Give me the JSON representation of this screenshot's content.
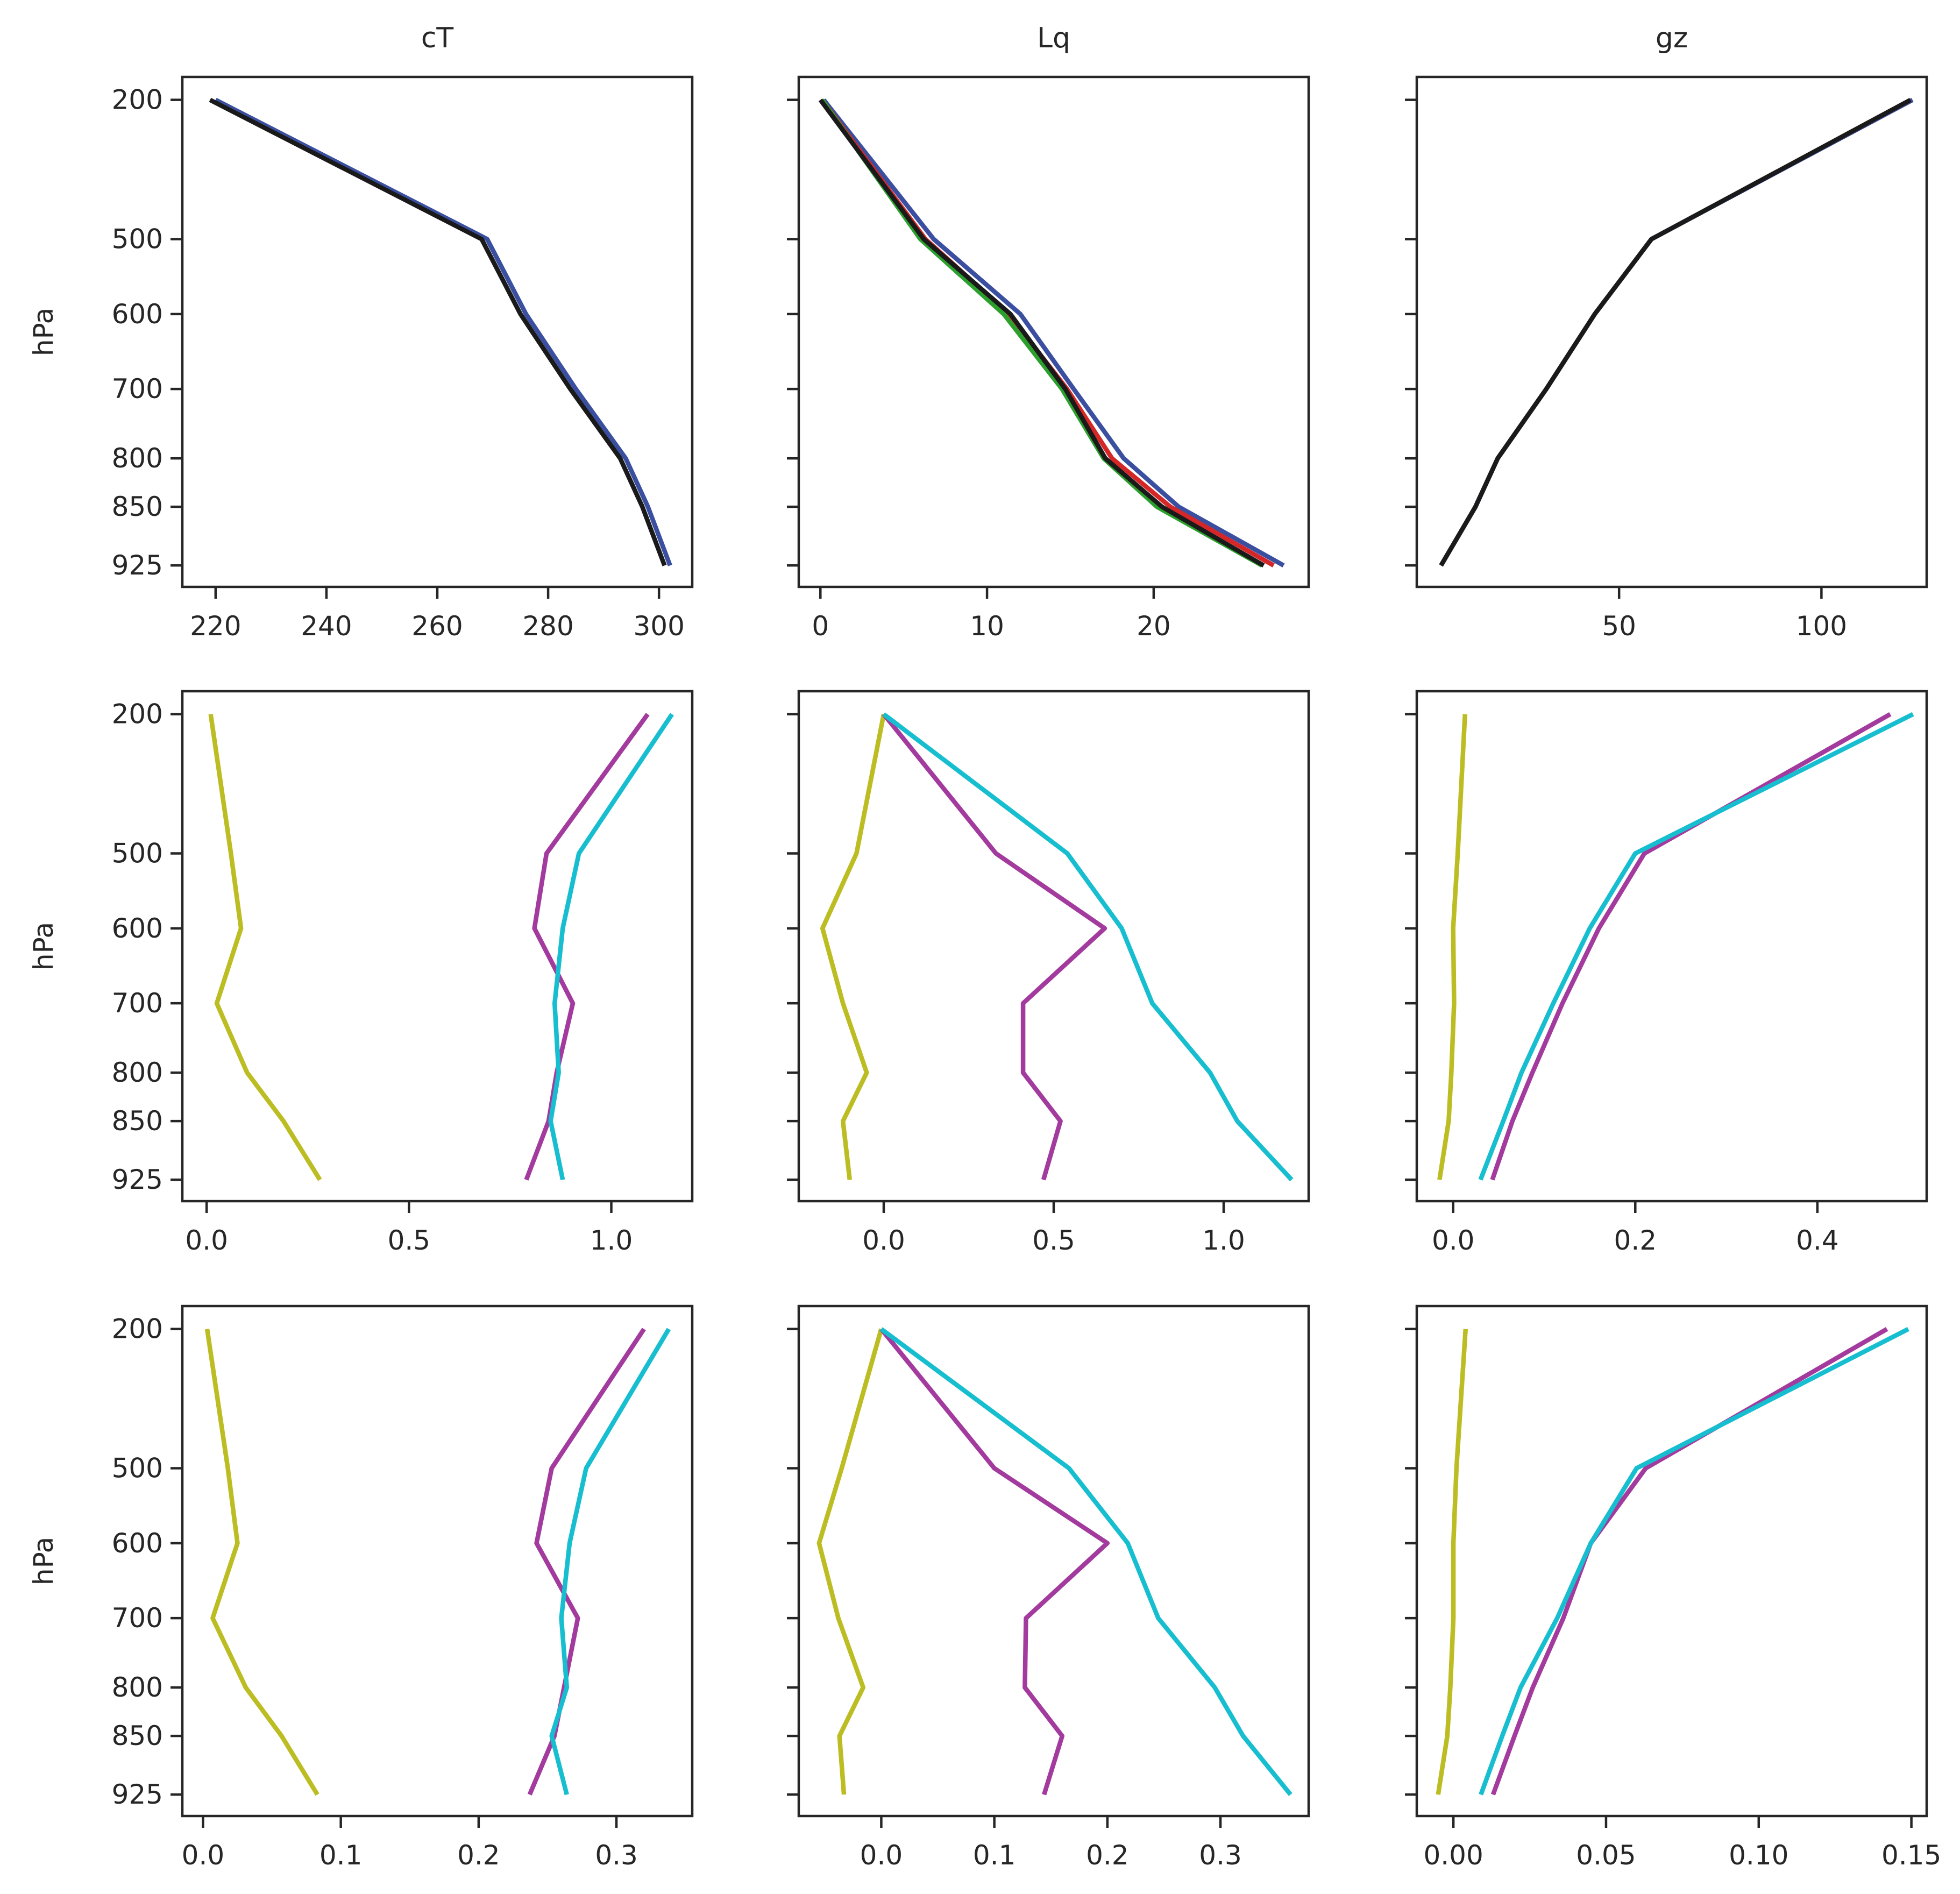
{
  "chart_data": {
    "type": "line",
    "layout": "3x3 grid of vertical profile plots (shared y axis per row)",
    "columns": [
      "cT",
      "Lq",
      "gz"
    ],
    "ylabel": "hPa",
    "pressure_levels": [
      200,
      500,
      600,
      700,
      800,
      850,
      925
    ],
    "panels": [
      {
        "row": 0,
        "col": 0,
        "title": "cT",
        "xlim": [
          214,
          306
        ],
        "xticks": [
          220,
          240,
          260,
          280,
          300
        ],
        "xtick_labels": [
          "220",
          "240",
          "260",
          "280",
          "300"
        ],
        "series": [
          {
            "name": "blue",
            "color": "#3b4fa0",
            "x": [
              220,
              269,
              276,
              285,
              294,
              298,
              302
            ]
          },
          {
            "name": "black",
            "color": "#1a1a1a",
            "x": [
              219,
              268,
              275,
              284,
              293,
              297,
              301
            ]
          }
        ]
      },
      {
        "row": 0,
        "col": 1,
        "title": "Lq",
        "xlim": [
          -1.3,
          29.3
        ],
        "xticks": [
          0,
          10,
          20
        ],
        "xtick_labels": [
          "0",
          "10",
          "20"
        ],
        "series": [
          {
            "name": "blue",
            "color": "#3b4fa0",
            "x": [
              0.2,
              6.8,
              12.0,
              15.2,
              18.2,
              21.5,
              27.8
            ]
          },
          {
            "name": "red",
            "color": "#d62728",
            "x": [
              0.1,
              6.3,
              11.3,
              14.8,
              17.5,
              21.0,
              27.2
            ]
          },
          {
            "name": "green",
            "color": "#2ca02c",
            "x": [
              0.1,
              6.0,
              11.0,
              14.5,
              17.0,
              20.2,
              26.5
            ]
          },
          {
            "name": "black",
            "color": "#1a1a1a",
            "x": [
              0.0,
              6.2,
              11.4,
              14.7,
              17.1,
              20.5,
              26.6
            ]
          }
        ]
      },
      {
        "row": 0,
        "col": 2,
        "title": "gz",
        "xlim": [
          0,
          126
        ],
        "xticks": [
          50,
          100
        ],
        "xtick_labels": [
          "50",
          "100"
        ],
        "series": [
          {
            "name": "blue",
            "color": "#3b4fa0",
            "x": [
              122.5,
              58.0,
              44.0,
              32.0,
              20.0,
              14.5,
              6.0
            ]
          },
          {
            "name": "black",
            "color": "#1a1a1a",
            "x": [
              122.0,
              58.0,
              44.0,
              32.0,
              20.0,
              14.5,
              6.0
            ]
          }
        ]
      },
      {
        "row": 1,
        "col": 0,
        "title": "",
        "xlim": [
          -0.06,
          1.2
        ],
        "xticks": [
          0,
          0.5,
          1.0
        ],
        "xtick_labels": [
          "0.0",
          "0.5",
          "1.0"
        ],
        "series": [
          {
            "name": "olive",
            "color": "#bcbd22",
            "x": [
              0.01,
              0.06,
              0.085,
              0.025,
              0.1,
              0.19,
              0.28
            ]
          },
          {
            "name": "magenta",
            "color": "#a33a9e",
            "x": [
              1.09,
              0.84,
              0.81,
              0.905,
              0.865,
              0.845,
              0.79
            ]
          },
          {
            "name": "cyan",
            "color": "#17becf",
            "x": [
              1.15,
              0.92,
              0.88,
              0.86,
              0.87,
              0.85,
              0.88
            ]
          }
        ]
      },
      {
        "row": 1,
        "col": 1,
        "title": "",
        "xlim": [
          -0.25,
          1.25
        ],
        "xticks": [
          0,
          0.5,
          1.0
        ],
        "xtick_labels": [
          "0.0",
          "0.5",
          "1.0"
        ],
        "series": [
          {
            "name": "olive",
            "color": "#bcbd22",
            "x": [
              0.0,
              -0.08,
              -0.18,
              -0.12,
              -0.05,
              -0.12,
              -0.1
            ]
          },
          {
            "name": "magenta",
            "color": "#a33a9e",
            "x": [
              0.0,
              0.33,
              0.65,
              0.41,
              0.41,
              0.52,
              0.47
            ]
          },
          {
            "name": "cyan",
            "color": "#17becf",
            "x": [
              0.0,
              0.54,
              0.7,
              0.79,
              0.96,
              1.04,
              1.2
            ]
          }
        ]
      },
      {
        "row": 1,
        "col": 2,
        "title": "",
        "xlim": [
          -0.04,
          0.52
        ],
        "xticks": [
          0,
          0.2,
          0.4
        ],
        "xtick_labels": [
          "0.0",
          "0.2",
          "0.4"
        ],
        "series": [
          {
            "name": "olive",
            "color": "#bcbd22",
            "x": [
              0.013,
              0.005,
              0.0,
              0.001,
              -0.002,
              -0.005,
              -0.015
            ]
          },
          {
            "name": "magenta",
            "color": "#a33a9e",
            "x": [
              0.48,
              0.21,
              0.16,
              0.12,
              0.087,
              0.065,
              0.043
            ]
          },
          {
            "name": "cyan",
            "color": "#17becf",
            "x": [
              0.505,
              0.2,
              0.15,
              0.11,
              0.075,
              0.055,
              0.03
            ]
          }
        ]
      },
      {
        "row": 2,
        "col": 0,
        "title": "",
        "xlim": [
          -0.015,
          0.355
        ],
        "xticks": [
          0,
          0.1,
          0.2,
          0.3
        ],
        "xtick_labels": [
          "0.0",
          "0.1",
          "0.2",
          "0.3"
        ],
        "series": [
          {
            "name": "olive",
            "color": "#bcbd22",
            "x": [
              0.003,
              0.018,
              0.025,
              0.007,
              0.031,
              0.057,
              0.083
            ]
          },
          {
            "name": "magenta",
            "color": "#a33a9e",
            "x": [
              0.32,
              0.253,
              0.242,
              0.272,
              0.262,
              0.255,
              0.237
            ]
          },
          {
            "name": "cyan",
            "color": "#17becf",
            "x": [
              0.338,
              0.278,
              0.266,
              0.26,
              0.264,
              0.253,
              0.264
            ]
          }
        ]
      },
      {
        "row": 2,
        "col": 1,
        "title": "",
        "xlim": [
          -0.073,
          0.378
        ],
        "xticks": [
          0,
          0.1,
          0.2,
          0.3
        ],
        "xtick_labels": [
          "0.0",
          "0.1",
          "0.2",
          "0.3"
        ],
        "series": [
          {
            "name": "olive",
            "color": "#bcbd22",
            "x": [
              0.0,
              -0.035,
              -0.055,
              -0.038,
              -0.016,
              -0.037,
              -0.033
            ]
          },
          {
            "name": "magenta",
            "color": "#a33a9e",
            "x": [
              0.0,
              0.1,
              0.2,
              0.128,
              0.127,
              0.16,
              0.144
            ]
          },
          {
            "name": "cyan",
            "color": "#17becf",
            "x": [
              0.0,
              0.166,
              0.218,
              0.245,
              0.295,
              0.32,
              0.362
            ]
          }
        ]
      },
      {
        "row": 2,
        "col": 2,
        "title": "",
        "xlim": [
          -0.012,
          0.155
        ],
        "xticks": [
          0,
          0.05,
          0.1,
          0.15
        ],
        "xtick_labels": [
          "0.00",
          "0.05",
          "0.10",
          "0.15"
        ],
        "series": [
          {
            "name": "olive",
            "color": "#bcbd22",
            "x": [
              0.004,
              0.001,
              0.0,
              0.0,
              -0.001,
              -0.002,
              -0.005
            ]
          },
          {
            "name": "magenta",
            "color": "#a33a9e",
            "x": [
              0.142,
              0.063,
              0.045,
              0.036,
              0.026,
              0.02,
              0.013
            ]
          },
          {
            "name": "cyan",
            "color": "#17becf",
            "x": [
              0.149,
              0.06,
              0.045,
              0.034,
              0.022,
              0.016,
              0.009
            ]
          }
        ]
      }
    ]
  }
}
